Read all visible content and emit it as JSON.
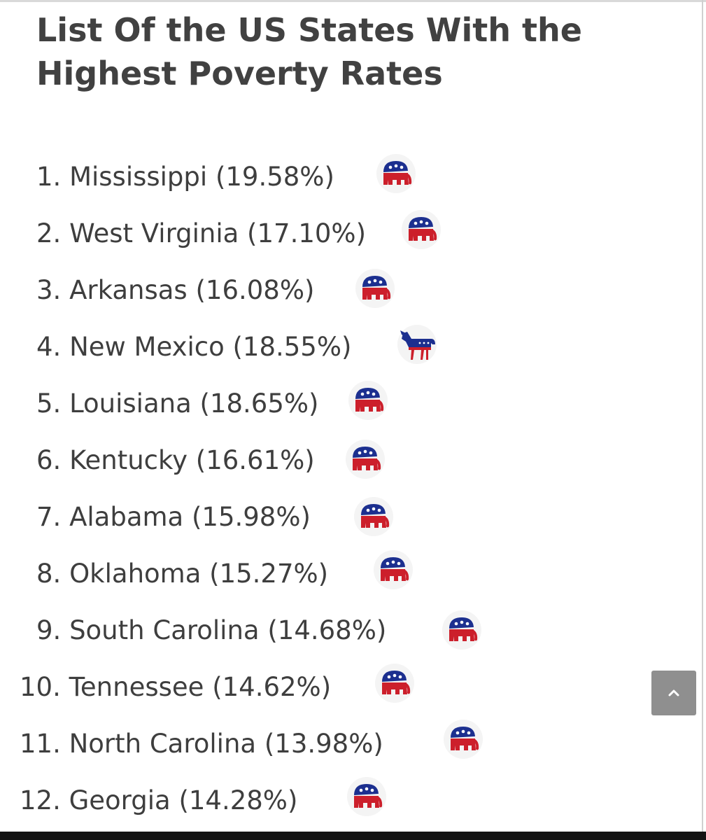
{
  "article": {
    "title_line1": "List Of the US States With the",
    "title_line2": "Highest Poverty Rates"
  },
  "states": [
    {
      "label": "1. Mississippi (19.58%)",
      "party_icon": "republican-elephant-icon"
    },
    {
      "label": "2. West Virginia (17.10%)",
      "party_icon": "republican-elephant-icon"
    },
    {
      "label": "3. Arkansas (16.08%)",
      "party_icon": "republican-elephant-icon"
    },
    {
      "label": "4. New Mexico (18.55%)",
      "party_icon": "democrat-donkey-icon"
    },
    {
      "label": "5. Louisiana (18.65%)",
      "party_icon": "republican-elephant-icon"
    },
    {
      "label": "6. Kentucky (16.61%)",
      "party_icon": "republican-elephant-icon"
    },
    {
      "label": "7. Alabama (15.98%)",
      "party_icon": "republican-elephant-icon"
    },
    {
      "label": "8. Oklahoma (15.27%)",
      "party_icon": "republican-elephant-icon"
    },
    {
      "label": "9. South Carolina (14.68%)",
      "party_icon": "republican-elephant-icon"
    },
    {
      "label": "10. Tennessee (14.62%)",
      "party_icon": "republican-elephant-icon"
    },
    {
      "label": "11. North Carolina (13.98%)",
      "party_icon": "republican-elephant-icon"
    },
    {
      "label": "12. Georgia (14.28%)",
      "party_icon": "republican-elephant-icon"
    }
  ],
  "scroll_top": {
    "icon": "chevron-up-icon"
  },
  "colors": {
    "republican_red": "#cc1f2b",
    "republican_blue": "#1c2f8f",
    "button_gray": "#8f8f8f"
  }
}
